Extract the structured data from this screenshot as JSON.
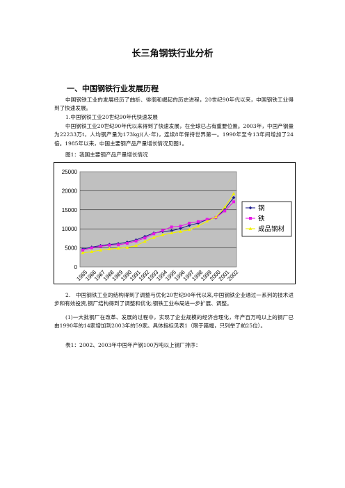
{
  "doc": {
    "title": "长三角钢铁行业分析",
    "section_heading": "一、中国钢铁行业发展历程",
    "p1": "中国钢铁工业的发展经历了曲折、徘徊和崛起的历史进程，20世纪90年代以来，中国钢铁工业得到了快速发展。",
    "p2": "1.中国钢铁工业20世纪90年代快速发展",
    "p3": "中国钢铁工业20世纪90年代以来得到了快速发展，在全球已占有重要位置。2003年，中国产钢量为22233万t，人均钢产量为173kg/(人·年)，连续8年保持世界第一。1990年至今13年间增加了24倍。1985年以来，中国主要钢产品产量增长情况见图1。",
    "fig_caption": "图1：我国主要钢产品产量增长情况",
    "p4": "2.　中国钢铁工业的结构得到了调整与优化20世纪90年代以来,中国钢铁企业通过一系列的技术进步和有效投资,钢厂结构得到了调整和优化;钢铁工业布局进一步扩展、调整。",
    "p5": "(1)一大批钢厂在改革、发展的过程中，实现了企业规模的经济合理化，年产百万吨以上的钢厂已由1990年的14家增加到2003年的59家。具体指标见表1（限于篇幅，只列举了前25位）。",
    "p6": "表1：2002、2003年中国年产钢100万吨以上钢厂排序："
  },
  "chart_data": {
    "type": "line",
    "x": [
      "1985",
      "1986",
      "1987",
      "1988",
      "1989",
      "1990",
      "1991",
      "1992",
      "1993",
      "1994",
      "1995",
      "1996",
      "1997",
      "1998",
      "1999",
      "2000",
      "2001",
      "2002"
    ],
    "series": [
      {
        "name": "钢",
        "color": "#1f1f8f",
        "marker": "diamond",
        "values": [
          4700,
          5200,
          5600,
          5900,
          6100,
          6500,
          7100,
          8000,
          8900,
          9300,
          9500,
          10100,
          10900,
          11500,
          12400,
          12900,
          15200,
          18200
        ]
      },
      {
        "name": "铁",
        "color": "#e619e6",
        "marker": "square",
        "values": [
          4400,
          5000,
          5400,
          5700,
          5800,
          6200,
          6800,
          7600,
          8700,
          9600,
          10500,
          10700,
          11500,
          11900,
          12500,
          13000,
          14700,
          17100
        ]
      },
      {
        "name": "成品钢材",
        "color": "#f0f000",
        "marker": "triangle",
        "values": [
          3700,
          4000,
          4400,
          4700,
          4900,
          5100,
          5600,
          6700,
          7700,
          8400,
          8900,
          9300,
          9800,
          10700,
          12000,
          13100,
          15700,
          19200
        ]
      }
    ],
    "yticks": [
      "25000",
      "20000",
      "15000",
      "10000",
      "5000",
      "0"
    ],
    "ylim": [
      0,
      25000
    ],
    "plot_bg": "#c0c0c0",
    "legend_position": "right"
  }
}
